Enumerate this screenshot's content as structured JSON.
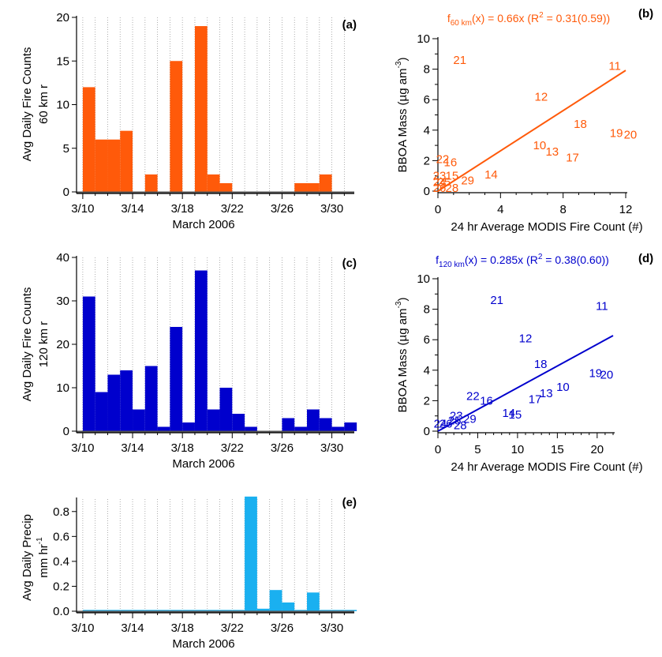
{
  "figure": {
    "panel_labels": [
      "(a)",
      "(b)",
      "(c)",
      "(d)",
      "(e)"
    ],
    "xaxis_label": "March 2006",
    "scatter_xlabel": "24 hr Average MODIS Fire Count (#)",
    "scatter_ylabel": "BBOA Mass (µg am",
    "scatter_ylabel_sup": "-3",
    "scatter_ylabel_end": ")"
  },
  "chart_data": [
    {
      "id": "a",
      "type": "bar",
      "ylabel": [
        "Avg Daily Fire Counts",
        "60 km r"
      ],
      "xlabel": "March 2006",
      "xticks": [
        "3/10",
        "3/14",
        "3/18",
        "3/22",
        "3/26",
        "3/30"
      ],
      "x": [
        10,
        11,
        12,
        13,
        14,
        15,
        16,
        17,
        18,
        19,
        20,
        21,
        22,
        23,
        24,
        25,
        26,
        27,
        28,
        29,
        30,
        31
      ],
      "values": [
        12,
        6,
        6,
        7,
        0,
        2,
        0,
        15,
        0,
        19,
        2,
        1,
        0,
        0,
        0,
        0,
        0,
        1,
        1,
        2,
        0,
        0
      ],
      "ylim": [
        0,
        20
      ],
      "yticks": [
        0,
        5,
        10,
        15,
        20
      ],
      "color": "#ff5a0a",
      "grid": "dotted vertical"
    },
    {
      "id": "b",
      "type": "scatter",
      "fit_label": {
        "prefix": "f",
        "sub": "60 km",
        "mid": "(x) = 0.66x (R",
        "sup": "2",
        "end": " = 0.31(0.59))"
      },
      "xlabel": "24 hr Average MODIS Fire Count (#)",
      "ylabel": "BBOA Mass (µg am-3)",
      "xlim": [
        0,
        12
      ],
      "ylim": [
        0,
        10
      ],
      "xticks": [
        0,
        4,
        8,
        12
      ],
      "yticks": [
        0,
        2,
        4,
        6,
        8,
        10
      ],
      "fit_slope": 0.66,
      "color": "#ff5a0a",
      "points": [
        {
          "label": "21",
          "x": 1.4,
          "y": 8.6
        },
        {
          "label": "11",
          "x": 11.3,
          "y": 8.2
        },
        {
          "label": "12",
          "x": 6.6,
          "y": 6.2
        },
        {
          "label": "18",
          "x": 9.1,
          "y": 4.4
        },
        {
          "label": "19",
          "x": 11.4,
          "y": 3.8
        },
        {
          "label": "20",
          "x": 12.3,
          "y": 3.7
        },
        {
          "label": "10",
          "x": 6.5,
          "y": 3.0
        },
        {
          "label": "13",
          "x": 7.3,
          "y": 2.6
        },
        {
          "label": "17",
          "x": 8.6,
          "y": 2.2
        },
        {
          "label": "14",
          "x": 3.4,
          "y": 1.1
        },
        {
          "label": "22",
          "x": 0.3,
          "y": 2.1
        },
        {
          "label": "16",
          "x": 0.8,
          "y": 1.9
        },
        {
          "label": "23",
          "x": 0.1,
          "y": 1.0
        },
        {
          "label": "15",
          "x": 0.9,
          "y": 1.0
        },
        {
          "label": "24",
          "x": 0.1,
          "y": 0.6
        },
        {
          "label": "25",
          "x": 0.4,
          "y": 0.6
        },
        {
          "label": "29",
          "x": 1.9,
          "y": 0.7
        },
        {
          "label": "26",
          "x": 0.1,
          "y": 0.2
        },
        {
          "label": "28",
          "x": 0.9,
          "y": 0.2
        }
      ]
    },
    {
      "id": "c",
      "type": "bar",
      "ylabel": [
        "Avg Daily Fire Counts",
        "120 km r"
      ],
      "xlabel": "March 2006",
      "xticks": [
        "3/10",
        "3/14",
        "3/18",
        "3/22",
        "3/26",
        "3/30"
      ],
      "x": [
        10,
        11,
        12,
        13,
        14,
        15,
        16,
        17,
        18,
        19,
        20,
        21,
        22,
        23,
        24,
        25,
        26,
        27,
        28,
        29,
        30,
        31
      ],
      "values": [
        31,
        9,
        13,
        14,
        5,
        15,
        1,
        24,
        2,
        37,
        5,
        10,
        4,
        1,
        0,
        0,
        3,
        1,
        5,
        3,
        1,
        2
      ],
      "ylim": [
        0,
        40
      ],
      "yticks": [
        0,
        10,
        20,
        30,
        40
      ],
      "color": "#0000cd",
      "grid": "dotted vertical"
    },
    {
      "id": "d",
      "type": "scatter",
      "fit_label": {
        "prefix": "f",
        "sub": "120 km",
        "mid": "(x) = 0.285x (R",
        "sup": "2",
        "end": " = 0.38(0.60))"
      },
      "xlabel": "24 hr Average MODIS Fire Count (#)",
      "ylabel": "BBOA Mass (µg am-3)",
      "xlim": [
        0,
        22
      ],
      "ylim": [
        0,
        10
      ],
      "xticks": [
        0,
        5,
        10,
        15,
        20
      ],
      "yticks": [
        0,
        2,
        4,
        6,
        8,
        10
      ],
      "fit_slope": 0.285,
      "color": "#0000cd",
      "points": [
        {
          "label": "21",
          "x": 7.4,
          "y": 8.6
        },
        {
          "label": "11",
          "x": 20.6,
          "y": 8.2
        },
        {
          "label": "12",
          "x": 11.0,
          "y": 6.1
        },
        {
          "label": "18",
          "x": 12.9,
          "y": 4.4
        },
        {
          "label": "19",
          "x": 19.8,
          "y": 3.8
        },
        {
          "label": "20",
          "x": 21.2,
          "y": 3.7
        },
        {
          "label": "10",
          "x": 15.7,
          "y": 2.9
        },
        {
          "label": "13",
          "x": 13.6,
          "y": 2.5
        },
        {
          "label": "17",
          "x": 12.2,
          "y": 2.1
        },
        {
          "label": "22",
          "x": 4.4,
          "y": 2.3
        },
        {
          "label": "16",
          "x": 6.1,
          "y": 2.0
        },
        {
          "label": "14",
          "x": 8.9,
          "y": 1.2
        },
        {
          "label": "15",
          "x": 9.7,
          "y": 1.1
        },
        {
          "label": "23",
          "x": 2.3,
          "y": 1.0
        },
        {
          "label": "25",
          "x": 2.1,
          "y": 0.7
        },
        {
          "label": "29",
          "x": 4.0,
          "y": 0.8
        },
        {
          "label": "24",
          "x": 0.3,
          "y": 0.5
        },
        {
          "label": "26",
          "x": 1.0,
          "y": 0.5
        },
        {
          "label": "28",
          "x": 2.8,
          "y": 0.4
        }
      ]
    },
    {
      "id": "e",
      "type": "bar",
      "ylabel": [
        "Avg Daily Precip",
        "mm hr"
      ],
      "ylabel_sup": "-1",
      "xlabel": "March 2006",
      "xticks": [
        "3/10",
        "3/14",
        "3/18",
        "3/22",
        "3/26",
        "3/30"
      ],
      "x": [
        10,
        11,
        12,
        13,
        14,
        15,
        16,
        17,
        18,
        19,
        20,
        21,
        22,
        23,
        24,
        25,
        26,
        27,
        28,
        29,
        30,
        31
      ],
      "values": [
        0.01,
        0.01,
        0.01,
        0.01,
        0.01,
        0.01,
        0.01,
        0.01,
        0.01,
        0.01,
        0.01,
        0.01,
        0.01,
        0.92,
        0.02,
        0.17,
        0.07,
        0.01,
        0.15,
        0.01,
        0.01,
        0.01
      ],
      "ylim": [
        0,
        0.9
      ],
      "yticks": [
        0.0,
        0.2,
        0.4,
        0.6,
        0.8
      ],
      "color": "#1ab0f0",
      "grid": "dotted vertical"
    }
  ]
}
